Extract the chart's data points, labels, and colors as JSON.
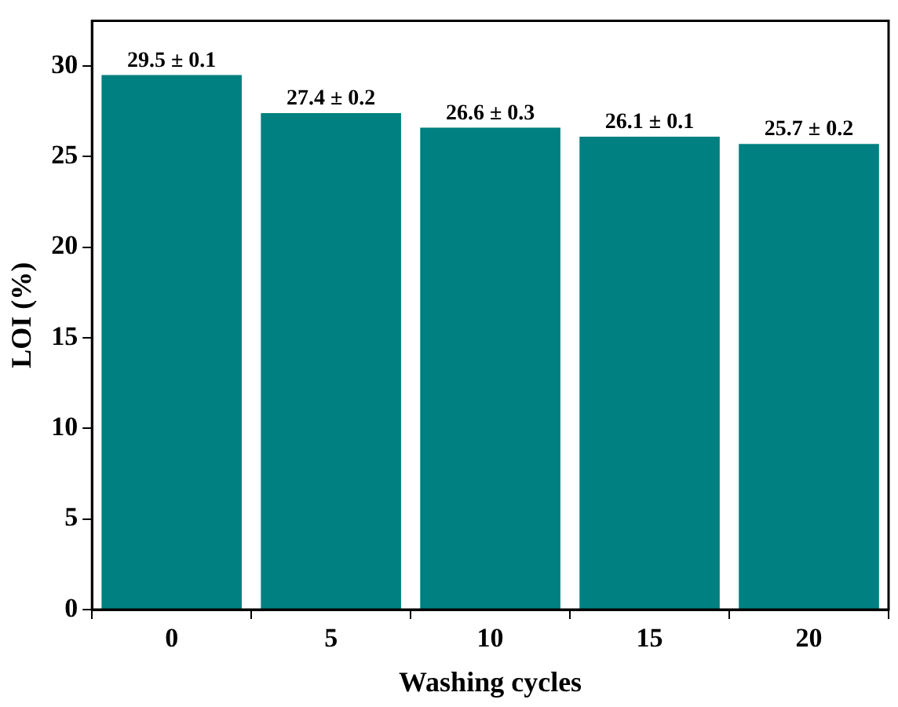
{
  "chart_data": {
    "type": "bar",
    "xlabel": "Washing cycles",
    "ylabel": "LOI (%)",
    "categories": [
      "0",
      "5",
      "10",
      "15",
      "20"
    ],
    "series": [
      {
        "color": "#008080",
        "values": [
          29.5,
          27.4,
          26.6,
          26.1,
          25.7
        ],
        "value_labels": [
          "29.5 ± 0.1",
          "27.4 ± 0.2",
          "26.6 ± 0.3",
          "26.1 ± 0.1",
          "25.7 ± 0.2"
        ]
      }
    ],
    "ylim": [
      0,
      32.5
    ],
    "yticks": [
      0,
      5,
      10,
      15,
      20,
      25,
      30
    ],
    "grid": false,
    "legend": false
  }
}
